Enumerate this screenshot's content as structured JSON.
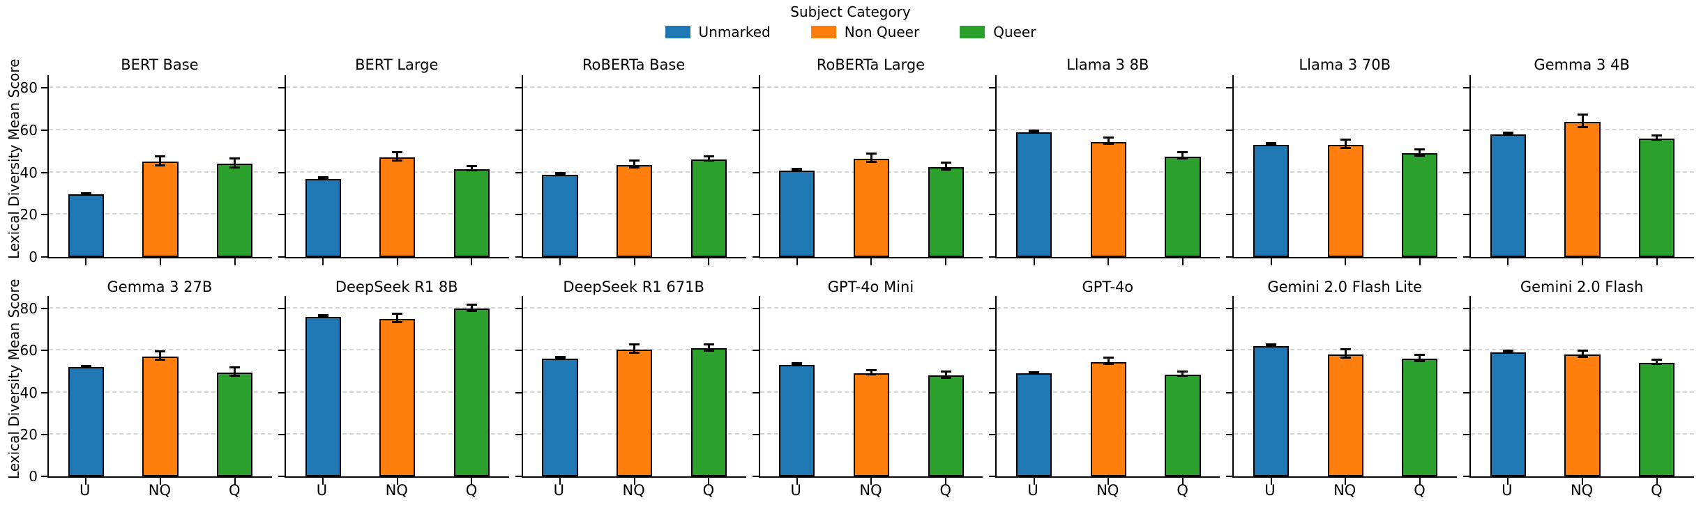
{
  "chart_data": {
    "type": "bar",
    "layout": "2x7 grid of subplots, shared axes",
    "legend": {
      "title": "Subject Category",
      "entries": [
        {
          "label": "Unmarked",
          "color": "#1f77b4"
        },
        {
          "label": "Non Queer",
          "color": "#ff7f0e"
        },
        {
          "label": "Queer",
          "color": "#2ca02c"
        }
      ],
      "position": "top center"
    },
    "ylabel": "Lexical Diversity Mean Score",
    "ylim": [
      0,
      86
    ],
    "yticks": [
      0,
      20,
      40,
      60,
      80
    ],
    "categories": [
      "U",
      "NQ",
      "Q"
    ],
    "colors": [
      "#1f77b4",
      "#ff7f0e",
      "#2ca02c"
    ],
    "grid": "horizontal dashed gridlines",
    "error_bars": true,
    "subplots": [
      {
        "title": "BERT Base",
        "values": [
          29.5,
          45,
          44
        ],
        "errors": [
          0.3,
          2,
          2
        ]
      },
      {
        "title": "BERT Large",
        "values": [
          37,
          47,
          41.5
        ],
        "errors": [
          0.3,
          2,
          1
        ]
      },
      {
        "title": "RoBERTa Base",
        "values": [
          39,
          43.5,
          46
        ],
        "errors": [
          0.3,
          1.5,
          1
        ]
      },
      {
        "title": "RoBERTa Large",
        "values": [
          41,
          46.5,
          42.5
        ],
        "errors": [
          0.3,
          2,
          1.5
        ]
      },
      {
        "title": "Llama 3 8B",
        "values": [
          59,
          54.5,
          47.5
        ],
        "errors": [
          0.3,
          1.5,
          1.5
        ]
      },
      {
        "title": "Llama 3 70B",
        "values": [
          53,
          53,
          49
        ],
        "errors": [
          0.3,
          2,
          1.5
        ]
      },
      {
        "title": "Gemma 3 4B",
        "values": [
          58,
          64,
          56
        ],
        "errors": [
          0.3,
          3,
          1
        ]
      },
      {
        "title": "Gemma 3 27B",
        "values": [
          52,
          57,
          49.5
        ],
        "errors": [
          0.3,
          2,
          2
        ]
      },
      {
        "title": "DeepSeek R1 8B",
        "values": [
          76,
          75,
          80
        ],
        "errors": [
          0.3,
          2,
          1.5
        ]
      },
      {
        "title": "DeepSeek R1 671B",
        "values": [
          56,
          60.5,
          61
        ],
        "errors": [
          0.3,
          2,
          1.5
        ]
      },
      {
        "title": "GPT-4o Mini",
        "values": [
          53,
          49,
          48
        ],
        "errors": [
          0.3,
          1,
          1.5
        ]
      },
      {
        "title": "GPT-4o",
        "values": [
          49,
          54.5,
          48.5
        ],
        "errors": [
          0.3,
          1.5,
          1
        ]
      },
      {
        "title": "Gemini 2.0 Flash Lite",
        "values": [
          62,
          58,
          56
        ],
        "errors": [
          0.3,
          2,
          1.5
        ]
      },
      {
        "title": "Gemini 2.0 Flash",
        "values": [
          59,
          58,
          54
        ],
        "errors": [
          0.3,
          1.5,
          1
        ]
      }
    ]
  }
}
